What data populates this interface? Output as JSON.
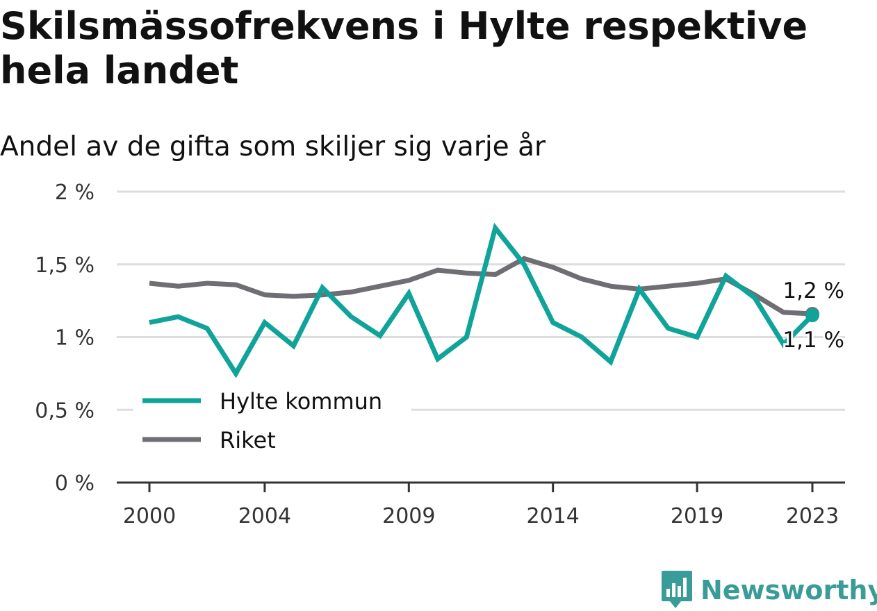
{
  "title": "Skilsmässofrekvens i Hylte respektive hela landet",
  "subtitle": "Andel av de gifta som skiljer sig varje år",
  "brand": {
    "name": "Newsworthy",
    "color": "#3a9c98",
    "icon": "bar-chart-speech-bubble-icon"
  },
  "colors": {
    "hylte": "#0fa39a",
    "riket": "#6f6e73",
    "grid": "#dddddd",
    "axis": "#333333",
    "text": "#333333"
  },
  "chart_data": {
    "type": "line",
    "x": [
      2000,
      2001,
      2002,
      2003,
      2004,
      2005,
      2006,
      2007,
      2008,
      2009,
      2010,
      2011,
      2012,
      2013,
      2014,
      2015,
      2016,
      2017,
      2018,
      2019,
      2020,
      2021,
      2022,
      2023
    ],
    "xticks": [
      2000,
      2004,
      2009,
      2014,
      2019,
      2023
    ],
    "xtick_labels": [
      "2000",
      "2004",
      "2009",
      "2014",
      "2019",
      "2023"
    ],
    "ylim": [
      0,
      2
    ],
    "yticks": [
      0,
      0.5,
      1,
      1.5,
      2
    ],
    "ytick_labels": [
      "0 %",
      "0,5 %",
      "1 %",
      "1,5 %",
      "2 %"
    ],
    "grid": true,
    "legend_position": "bottom-left",
    "series": [
      {
        "name": "Hylte kommun",
        "color": "#0fa39a",
        "values": [
          1.1,
          1.14,
          1.06,
          0.75,
          1.1,
          0.94,
          1.34,
          1.14,
          1.01,
          1.3,
          0.85,
          1.0,
          1.75,
          1.5,
          1.1,
          1.0,
          0.83,
          1.33,
          1.06,
          1.0,
          1.42,
          1.27,
          0.95,
          1.15
        ],
        "end_label": "1,1 %"
      },
      {
        "name": "Riket",
        "color": "#6f6e73",
        "values": [
          1.37,
          1.35,
          1.37,
          1.36,
          1.29,
          1.28,
          1.29,
          1.31,
          1.35,
          1.39,
          1.46,
          1.44,
          1.43,
          1.54,
          1.48,
          1.4,
          1.35,
          1.33,
          1.35,
          1.37,
          1.4,
          1.29,
          1.17,
          1.16
        ],
        "end_label": "1,2 %"
      }
    ]
  }
}
